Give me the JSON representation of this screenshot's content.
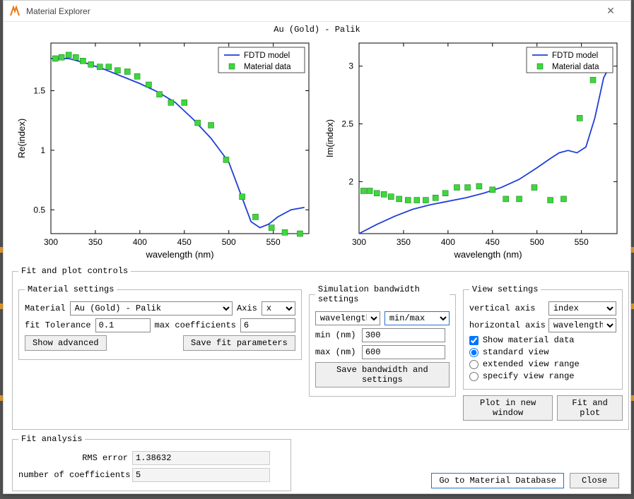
{
  "window": {
    "title": "Material Explorer",
    "chart_title": "Au (Gold) - Palik"
  },
  "legend": {
    "model": "FDTD model",
    "data": "Material data",
    "model_color": "#1f3fd6",
    "data_color": "#3fd63f"
  },
  "chart_style": {
    "axis_color": "#000000",
    "bg_color": "#ffffff",
    "xlabel": "wavelength (nm)",
    "y1label": "Re(index)",
    "y2label": "Im(index)",
    "line_width": 1.8,
    "marker_size": 8,
    "xlim": [
      300,
      590
    ],
    "xticks": [
      300,
      350,
      400,
      450,
      500,
      550
    ],
    "y1lim": [
      0.3,
      1.9
    ],
    "y1ticks": [
      0.5,
      1,
      1.5
    ],
    "y2lim": [
      1.55,
      3.2
    ],
    "y2ticks": [
      2,
      2.5,
      3
    ]
  },
  "chart1": {
    "type": "line+scatter",
    "model": [
      [
        300,
        1.77
      ],
      [
        320,
        1.77
      ],
      [
        340,
        1.73
      ],
      [
        360,
        1.68
      ],
      [
        380,
        1.62
      ],
      [
        400,
        1.56
      ],
      [
        420,
        1.49
      ],
      [
        440,
        1.4
      ],
      [
        460,
        1.26
      ],
      [
        480,
        1.1
      ],
      [
        500,
        0.9
      ],
      [
        515,
        0.6
      ],
      [
        525,
        0.4
      ],
      [
        535,
        0.35
      ],
      [
        545,
        0.38
      ],
      [
        555,
        0.44
      ],
      [
        570,
        0.5
      ],
      [
        585,
        0.52
      ]
    ],
    "data": [
      [
        305,
        1.77
      ],
      [
        312,
        1.78
      ],
      [
        320,
        1.8
      ],
      [
        328,
        1.78
      ],
      [
        336,
        1.75
      ],
      [
        345,
        1.72
      ],
      [
        355,
        1.7
      ],
      [
        365,
        1.7
      ],
      [
        375,
        1.67
      ],
      [
        386,
        1.66
      ],
      [
        397,
        1.62
      ],
      [
        410,
        1.55
      ],
      [
        422,
        1.47
      ],
      [
        435,
        1.4
      ],
      [
        450,
        1.4
      ],
      [
        465,
        1.23
      ],
      [
        480,
        1.21
      ],
      [
        497,
        0.92
      ],
      [
        515,
        0.61
      ],
      [
        530,
        0.44
      ],
      [
        548,
        0.35
      ],
      [
        563,
        0.31
      ],
      [
        580,
        0.3
      ]
    ]
  },
  "chart2": {
    "type": "line+scatter",
    "model": [
      [
        300,
        1.55
      ],
      [
        320,
        1.63
      ],
      [
        340,
        1.7
      ],
      [
        360,
        1.76
      ],
      [
        380,
        1.8
      ],
      [
        400,
        1.83
      ],
      [
        420,
        1.86
      ],
      [
        440,
        1.9
      ],
      [
        460,
        1.95
      ],
      [
        480,
        2.02
      ],
      [
        500,
        2.12
      ],
      [
        515,
        2.2
      ],
      [
        525,
        2.25
      ],
      [
        535,
        2.27
      ],
      [
        545,
        2.25
      ],
      [
        555,
        2.3
      ],
      [
        565,
        2.55
      ],
      [
        575,
        2.9
      ],
      [
        585,
        3.05
      ]
    ],
    "data": [
      [
        305,
        1.92
      ],
      [
        312,
        1.92
      ],
      [
        320,
        1.9
      ],
      [
        328,
        1.89
      ],
      [
        336,
        1.87
      ],
      [
        345,
        1.85
      ],
      [
        355,
        1.84
      ],
      [
        365,
        1.84
      ],
      [
        375,
        1.84
      ],
      [
        386,
        1.86
      ],
      [
        397,
        1.9
      ],
      [
        410,
        1.95
      ],
      [
        422,
        1.95
      ],
      [
        435,
        1.96
      ],
      [
        450,
        1.93
      ],
      [
        465,
        1.85
      ],
      [
        480,
        1.85
      ],
      [
        497,
        1.95
      ],
      [
        515,
        1.84
      ],
      [
        530,
        1.85
      ],
      [
        548,
        2.55
      ],
      [
        563,
        2.88
      ],
      [
        580,
        3.0
      ]
    ]
  },
  "fit_controls_label": "Fit and plot controls",
  "material_settings": {
    "legend": "Material settings",
    "material_label": "Material",
    "material_value": "Au (Gold) - Palik",
    "axis_label": "Axis",
    "axis_value": "x",
    "fit_tol_label": "fit Tolerance",
    "fit_tol_value": "0.1",
    "max_coef_label": "max coefficients",
    "max_coef_value": "6",
    "show_advanced_btn": "Show advanced",
    "save_fit_btn": "Save fit parameters"
  },
  "sim_settings": {
    "legend": "Simulation bandwidth settings",
    "mode1": "wavelength",
    "mode2": "min/max",
    "min_label": "min (nm)",
    "min_value": "300",
    "max_label": "max (nm)",
    "max_value": "600",
    "save_btn": "Save bandwidth and settings"
  },
  "view_settings": {
    "legend": "View settings",
    "vaxis_label": "vertical axis",
    "vaxis_value": "index",
    "haxis_label": "horizontal axis",
    "haxis_value": "wavelength",
    "show_data_label": "Show material data",
    "show_data_checked": true,
    "radio_standard": "standard view",
    "radio_extended": "extended view range",
    "radio_specify": "specify view range",
    "radio_selected": "standard"
  },
  "action_buttons": {
    "plot_new": "Plot in new window",
    "fit_plot": "Fit and plot"
  },
  "fit_analysis": {
    "legend": "Fit analysis",
    "rms_label": "RMS error",
    "rms_value": "1.38632",
    "ncoef_label": "number of coefficients",
    "ncoef_value": "5"
  },
  "bottom": {
    "goto_db": "Go to Material Database",
    "close": "Close"
  }
}
